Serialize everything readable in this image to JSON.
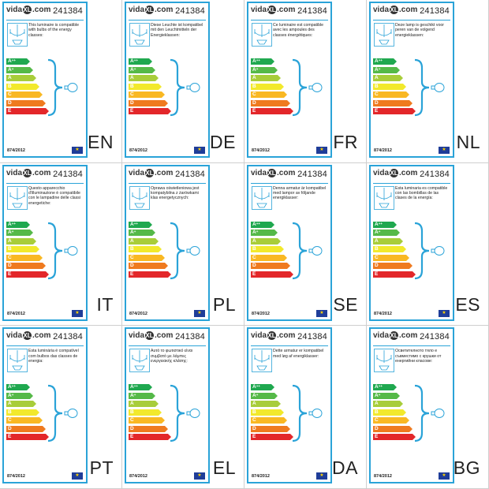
{
  "colors": {
    "border": "#2aa3d8",
    "eu": "#1f3d99"
  },
  "product_code": "241384",
  "logo": {
    "before": "vida",
    "mark": "XL",
    "after": ".com"
  },
  "regulation": "874/2012",
  "energy_classes": [
    {
      "label": "A",
      "sup": "++",
      "color": "#1fa84f",
      "width": 26
    },
    {
      "label": "A",
      "sup": "+",
      "color": "#55b948",
      "width": 30
    },
    {
      "label": "A",
      "sup": "",
      "color": "#a8cd3a",
      "width": 34
    },
    {
      "label": "B",
      "sup": "",
      "color": "#f2e92c",
      "width": 38
    },
    {
      "label": "C",
      "sup": "",
      "color": "#f9b823",
      "width": 42
    },
    {
      "label": "D",
      "sup": "",
      "color": "#ef7a1f",
      "width": 46
    },
    {
      "label": "E",
      "sup": "",
      "color": "#e3272a",
      "width": 50
    }
  ],
  "labels": [
    {
      "lang": "EN",
      "text": "This luminaire is compatible with bulbs of the energy classes:"
    },
    {
      "lang": "DE",
      "text": "Diese Leuchte ist kompatibel mit den Leuchtmitteln der Energieklassen:"
    },
    {
      "lang": "FR",
      "text": "Ce luminaire est compatible avec les ampoules des classes énergétiques:"
    },
    {
      "lang": "NL",
      "text": "Deze lamp is geschikt voor peren van de volgend energieklassen:"
    },
    {
      "lang": "IT",
      "text": "Questo apparecchio d'illuminazione è compatibile con le lampadine delle classi energetiche:"
    },
    {
      "lang": "PL",
      "text": "Oprawa oświetleniowa jest kompatybilna z żarówkami klas energetycznych:"
    },
    {
      "lang": "SE",
      "text": "Denna armatur är kompatibel med lampor av följande energiklasser:"
    },
    {
      "lang": "ES",
      "text": "Esta luminaria es compatible con las bombillas de las clases de la energía:"
    },
    {
      "lang": "PT",
      "text": "Esta luminária é compatível com bulbos das classes de energia:"
    },
    {
      "lang": "EL",
      "text": "Αυτό το φωτιστικό είναι συμβατό με λάμπες ενεργειακής κλάσης:"
    },
    {
      "lang": "DA",
      "text": "Dette armatur er kompatibel med løg af energiklasser:"
    },
    {
      "lang": "BG",
      "text": "Осветителното тяло е съвместимо с крушки от енергийни класове:"
    }
  ]
}
